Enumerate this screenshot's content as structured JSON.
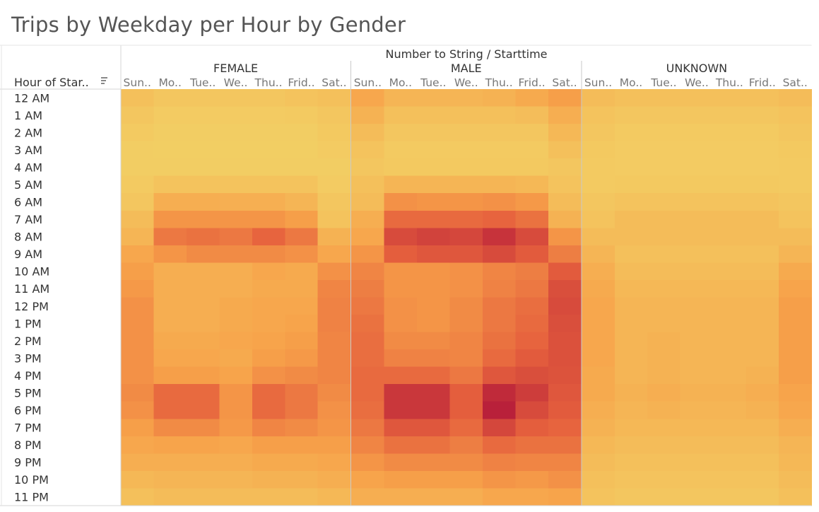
{
  "chart_data": {
    "type": "heatmap",
    "title": "Trips by Weekday per Hour by Gender",
    "column_header_title": "Number to String / Starttime",
    "row_header_title": "Hour of Star..",
    "groups": [
      "FEMALE",
      "MALE",
      "UNKNOWN"
    ],
    "day_labels": [
      "Sun..",
      "Mo..",
      "Tue..",
      "We..",
      "Thu..",
      "Frid..",
      "Sat.."
    ],
    "hours": [
      "12 AM",
      "1 AM",
      "2 AM",
      "3 AM",
      "4 AM",
      "5 AM",
      "6 AM",
      "7 AM",
      "8 AM",
      "9 AM",
      "10 AM",
      "11 AM",
      "12 PM",
      "1 PM",
      "2 PM",
      "3 PM",
      "4 PM",
      "5 PM",
      "6 PM",
      "7 PM",
      "8 PM",
      "9 PM",
      "10 PM",
      "11 PM"
    ],
    "value_scale": "relative intensity 0-100 (no legend shown)",
    "color_ramp": [
      "#f2d165",
      "#f7a24a",
      "#e6613d",
      "#b9203a"
    ],
    "values": {
      "FEMALE": [
        [
          12,
          8,
          8,
          8,
          8,
          10,
          12
        ],
        [
          8,
          4,
          4,
          4,
          4,
          5,
          8
        ],
        [
          5,
          3,
          3,
          3,
          3,
          3,
          6
        ],
        [
          3,
          2,
          2,
          2,
          2,
          2,
          4
        ],
        [
          3,
          3,
          3,
          3,
          3,
          3,
          3
        ],
        [
          5,
          10,
          10,
          10,
          10,
          10,
          4
        ],
        [
          8,
          25,
          25,
          24,
          24,
          20,
          8
        ],
        [
          15,
          40,
          40,
          40,
          40,
          35,
          10
        ],
        [
          20,
          55,
          58,
          55,
          65,
          55,
          22
        ],
        [
          30,
          40,
          45,
          45,
          45,
          42,
          30
        ],
        [
          35,
          25,
          25,
          25,
          30,
          28,
          42
        ],
        [
          38,
          25,
          25,
          25,
          28,
          28,
          48
        ],
        [
          42,
          25,
          25,
          28,
          30,
          30,
          50
        ],
        [
          42,
          25,
          25,
          28,
          30,
          32,
          50
        ],
        [
          42,
          28,
          28,
          30,
          32,
          35,
          48
        ],
        [
          42,
          30,
          30,
          28,
          35,
          38,
          48
        ],
        [
          42,
          35,
          35,
          32,
          42,
          45,
          48
        ],
        [
          45,
          62,
          62,
          40,
          62,
          55,
          45
        ],
        [
          42,
          62,
          62,
          40,
          62,
          55,
          42
        ],
        [
          35,
          45,
          45,
          38,
          48,
          45,
          40
        ],
        [
          30,
          32,
          32,
          30,
          35,
          35,
          35
        ],
        [
          25,
          25,
          25,
          25,
          28,
          28,
          30
        ],
        [
          18,
          20,
          20,
          20,
          22,
          22,
          25
        ],
        [
          12,
          15,
          15,
          15,
          15,
          15,
          18
        ]
      ],
      "MALE": [
        [
          30,
          20,
          20,
          20,
          22,
          28,
          35
        ],
        [
          22,
          12,
          12,
          12,
          12,
          14,
          25
        ],
        [
          15,
          8,
          8,
          8,
          8,
          8,
          18
        ],
        [
          10,
          5,
          5,
          5,
          5,
          5,
          12
        ],
        [
          8,
          6,
          6,
          6,
          6,
          6,
          8
        ],
        [
          12,
          20,
          20,
          20,
          20,
          18,
          10
        ],
        [
          15,
          42,
          40,
          40,
          42,
          38,
          15
        ],
        [
          25,
          62,
          62,
          62,
          65,
          58,
          22
        ],
        [
          30,
          78,
          82,
          80,
          90,
          78,
          40
        ],
        [
          40,
          68,
          72,
          72,
          78,
          70,
          52
        ],
        [
          48,
          40,
          40,
          42,
          48,
          52,
          70
        ],
        [
          52,
          40,
          40,
          42,
          50,
          55,
          76
        ],
        [
          55,
          42,
          40,
          45,
          55,
          60,
          78
        ],
        [
          58,
          42,
          40,
          45,
          55,
          62,
          76
        ],
        [
          60,
          45,
          45,
          48,
          58,
          65,
          75
        ],
        [
          60,
          50,
          50,
          48,
          62,
          70,
          75
        ],
        [
          62,
          62,
          62,
          55,
          72,
          76,
          74
        ],
        [
          62,
          88,
          88,
          68,
          95,
          85,
          72
        ],
        [
          60,
          88,
          88,
          68,
          100,
          78,
          70
        ],
        [
          55,
          72,
          72,
          62,
          80,
          68,
          65
        ],
        [
          48,
          58,
          58,
          52,
          62,
          58,
          58
        ],
        [
          40,
          45,
          45,
          45,
          50,
          48,
          48
        ],
        [
          32,
          35,
          35,
          35,
          40,
          38,
          42
        ],
        [
          25,
          25,
          25,
          25,
          30,
          30,
          32
        ]
      ],
      "UNKNOWN": [
        [
          15,
          12,
          12,
          12,
          12,
          12,
          15
        ],
        [
          10,
          8,
          8,
          8,
          8,
          8,
          10
        ],
        [
          8,
          5,
          5,
          5,
          5,
          5,
          8
        ],
        [
          6,
          4,
          4,
          4,
          4,
          4,
          6
        ],
        [
          5,
          4,
          4,
          4,
          4,
          4,
          5
        ],
        [
          5,
          6,
          6,
          6,
          6,
          6,
          5
        ],
        [
          8,
          10,
          10,
          10,
          10,
          10,
          8
        ],
        [
          10,
          15,
          15,
          15,
          15,
          15,
          10
        ],
        [
          15,
          15,
          15,
          15,
          15,
          15,
          15
        ],
        [
          20,
          12,
          12,
          12,
          12,
          12,
          20
        ],
        [
          25,
          15,
          15,
          15,
          15,
          15,
          28
        ],
        [
          28,
          18,
          18,
          18,
          18,
          18,
          32
        ],
        [
          30,
          20,
          20,
          20,
          20,
          20,
          35
        ],
        [
          30,
          20,
          20,
          20,
          20,
          20,
          35
        ],
        [
          30,
          20,
          22,
          20,
          20,
          20,
          35
        ],
        [
          30,
          20,
          22,
          20,
          20,
          20,
          35
        ],
        [
          28,
          20,
          22,
          20,
          20,
          22,
          35
        ],
        [
          28,
          22,
          25,
          22,
          22,
          25,
          32
        ],
        [
          25,
          20,
          22,
          20,
          20,
          22,
          30
        ],
        [
          22,
          18,
          18,
          18,
          18,
          18,
          25
        ],
        [
          18,
          15,
          15,
          15,
          15,
          15,
          20
        ],
        [
          15,
          12,
          12,
          12,
          12,
          12,
          18
        ],
        [
          12,
          10,
          10,
          10,
          10,
          10,
          15
        ],
        [
          10,
          8,
          8,
          8,
          8,
          8,
          12
        ]
      ]
    }
  }
}
